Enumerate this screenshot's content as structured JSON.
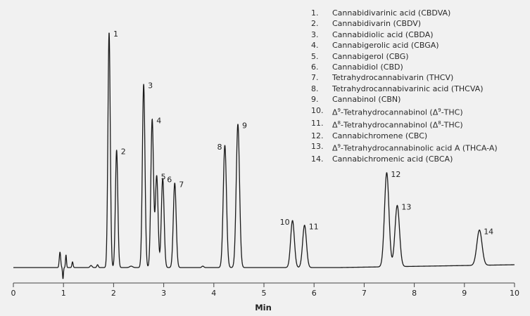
{
  "chart_data": {
    "type": "line",
    "title": "",
    "xlabel": "Min",
    "ylabel": "",
    "xlim": [
      0,
      10
    ],
    "x_ticks": [
      "0",
      "1",
      "2",
      "3",
      "4",
      "5",
      "6",
      "7",
      "8",
      "9",
      "10"
    ],
    "grid": false,
    "legend_position": "top-right",
    "series_color": "#1a1a1a",
    "peaks": [
      {
        "label": "1",
        "rt": 1.91,
        "height": 1.0
      },
      {
        "label": "2",
        "rt": 2.06,
        "height": 0.5
      },
      {
        "label": "3",
        "rt": 2.6,
        "height": 0.78
      },
      {
        "label": "4",
        "rt": 2.77,
        "height": 0.63
      },
      {
        "label": "5",
        "rt": 2.86,
        "height": 0.39
      },
      {
        "label": "6",
        "rt": 2.98,
        "height": 0.38
      },
      {
        "label": "7",
        "rt": 3.22,
        "height": 0.36
      },
      {
        "label": "8",
        "rt": 4.22,
        "height": 0.52
      },
      {
        "label": "9",
        "rt": 4.48,
        "height": 0.61
      },
      {
        "label": "10",
        "rt": 5.57,
        "height": 0.2
      },
      {
        "label": "11",
        "rt": 5.81,
        "height": 0.18
      },
      {
        "label": "12",
        "rt": 7.45,
        "height": 0.4
      },
      {
        "label": "13",
        "rt": 7.66,
        "height": 0.26
      },
      {
        "label": "14",
        "rt": 9.3,
        "height": 0.15
      }
    ],
    "legend": [
      {
        "num": "1.",
        "name": "Cannabidivarinic acid (CBDVA)"
      },
      {
        "num": "2.",
        "name": "Cannabidivarin (CBDV)"
      },
      {
        "num": "3.",
        "name": "Cannabidiolic acid (CBDA)"
      },
      {
        "num": "4.",
        "name": "Cannabigerolic acid (CBGA)"
      },
      {
        "num": "5.",
        "name": "Cannabigerol (CBG)"
      },
      {
        "num": "6.",
        "name": "Cannabidiol (CBD)"
      },
      {
        "num": "7.",
        "name": "Tetrahydrocannabivarin (THCV)"
      },
      {
        "num": "8.",
        "name": "Tetrahydrocannabivarinic acid (THCVA)"
      },
      {
        "num": "9.",
        "name": "Cannabinol (CBN)"
      },
      {
        "num": "10.",
        "name": "Δ9-Tetrahydrocannabinol (Δ9-THC)"
      },
      {
        "num": "11.",
        "name": "Δ8-Tetrahydrocannabinol (Δ8-THC)"
      },
      {
        "num": "12.",
        "name": "Cannabichromene (CBC)"
      },
      {
        "num": "13.",
        "name": "Δ9-Tetrahydrocannabinolic acid A (THCA-A)"
      },
      {
        "num": "14.",
        "name": "Cannabichromenic acid (CBCA)"
      }
    ]
  }
}
